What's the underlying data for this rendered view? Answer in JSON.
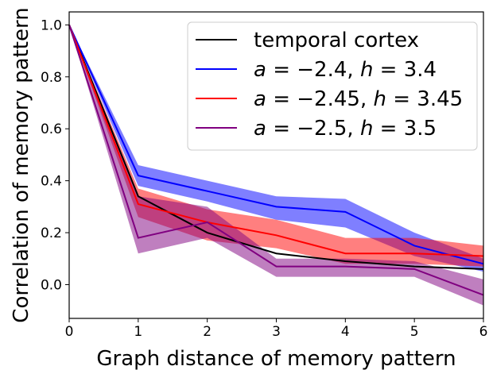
{
  "chart_data": {
    "type": "line",
    "title": "",
    "xlabel": "Graph distance of memory pattern",
    "ylabel": "Correlation of memory pattern",
    "xlim": [
      0,
      6
    ],
    "ylim": [
      -0.13,
      1.05
    ],
    "x": [
      0,
      1,
      2,
      3,
      4,
      5,
      6
    ],
    "xticks": [
      "0",
      "1",
      "2",
      "3",
      "4",
      "5",
      "6"
    ],
    "yticks": [
      "0.0",
      "0.2",
      "0.4",
      "0.6",
      "0.8",
      "1.0"
    ],
    "grid": false,
    "legend_position": "top-right",
    "series": [
      {
        "name": "temporal cortex",
        "color": "#000000",
        "values": [
          1.0,
          0.34,
          0.2,
          0.12,
          0.09,
          0.07,
          0.06
        ],
        "lower": [
          1.0,
          0.34,
          0.2,
          0.12,
          0.09,
          0.07,
          0.06
        ],
        "upper": [
          1.0,
          0.34,
          0.2,
          0.12,
          0.09,
          0.07,
          0.06
        ]
      },
      {
        "name": "a = −2.4, h = 3.4",
        "color": "#0000ff",
        "values": [
          1.0,
          0.42,
          0.36,
          0.3,
          0.28,
          0.15,
          0.08
        ],
        "lower": [
          1.0,
          0.38,
          0.32,
          0.25,
          0.22,
          0.11,
          0.05
        ],
        "upper": [
          1.0,
          0.46,
          0.4,
          0.34,
          0.33,
          0.2,
          0.1
        ]
      },
      {
        "name": "a = −2.45, h = 3.45",
        "color": "#ff0000",
        "values": [
          1.0,
          0.31,
          0.24,
          0.19,
          0.12,
          0.12,
          0.11
        ],
        "lower": [
          1.0,
          0.26,
          0.17,
          0.14,
          0.08,
          0.08,
          0.07
        ],
        "upper": [
          1.0,
          0.37,
          0.29,
          0.25,
          0.18,
          0.18,
          0.15
        ]
      },
      {
        "name": "a = −2.5, h = 3.5",
        "color": "#800080",
        "values": [
          1.0,
          0.18,
          0.24,
          0.07,
          0.07,
          0.06,
          -0.04
        ],
        "lower": [
          1.0,
          0.12,
          0.18,
          0.03,
          0.03,
          0.03,
          -0.08
        ],
        "upper": [
          1.0,
          0.34,
          0.3,
          0.1,
          0.1,
          0.09,
          0.02
        ]
      }
    ],
    "legend": [
      {
        "text": "temporal cortex",
        "color": "#000000",
        "math": false
      },
      {
        "color": "#0000ff",
        "math": true,
        "a": "2.4",
        "h": "3.4"
      },
      {
        "color": "#ff0000",
        "math": true,
        "a": "2.45",
        "h": "3.45"
      },
      {
        "color": "#800080",
        "math": true,
        "a": "2.5",
        "h": "3.5"
      }
    ]
  }
}
